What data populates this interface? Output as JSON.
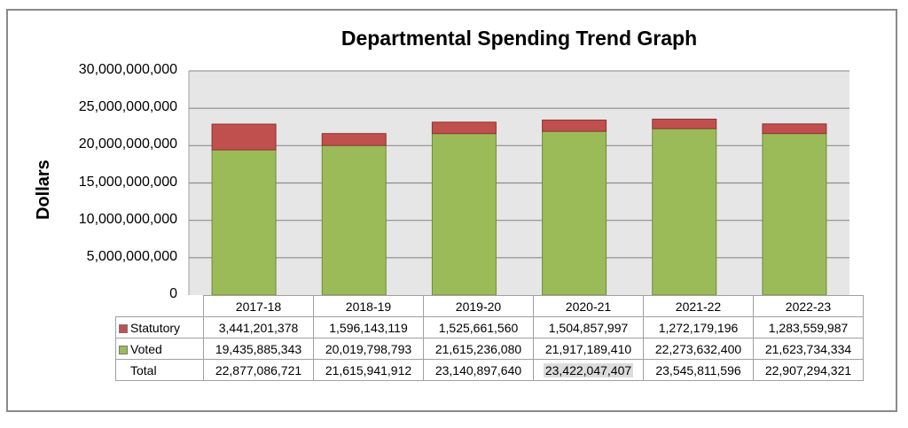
{
  "chart_data": {
    "type": "bar",
    "stacked": true,
    "title": "Departmental Spending Trend Graph",
    "xlabel": "",
    "ylabel": "Dollars",
    "ylim": [
      0,
      30000000000
    ],
    "yticks": [
      0,
      5000000000,
      10000000000,
      15000000000,
      20000000000,
      25000000000,
      30000000000
    ],
    "ytick_labels": [
      "0",
      "5,000,000,000",
      "10,000,000,000",
      "15,000,000,000",
      "20,000,000,000",
      "25,000,000,000",
      "30,000,000,000"
    ],
    "grid": true,
    "legend": "data-table-left",
    "categories": [
      "2017-18",
      "2018-19",
      "2019-20",
      "2020-21",
      "2021-22",
      "2022-23"
    ],
    "series": [
      {
        "name": "Statutory",
        "color": "#c0504d",
        "values": [
          3441201378,
          1596143119,
          1525661560,
          1504857997,
          1272179196,
          1283559987
        ]
      },
      {
        "name": "Voted",
        "color": "#9bbb59",
        "values": [
          19435885343,
          20019798793,
          21615236080,
          21917189410,
          22273632400,
          21623734334
        ]
      }
    ],
    "table": {
      "rows": [
        {
          "label": "Statutory",
          "values": [
            "3,441,201,378",
            "1,596,143,119",
            "1,525,661,560",
            "1,504,857,997",
            "1,272,179,196",
            "1,283,559,987"
          ]
        },
        {
          "label": "Voted",
          "values": [
            "19,435,885,343",
            "20,019,798,793",
            "21,615,236,080",
            "21,917,189,410",
            "22,273,632,400",
            "21,623,734,334"
          ]
        },
        {
          "label": "Total",
          "values": [
            "22,877,086,721",
            "21,615,941,912",
            "23,140,897,640",
            "23,422,047,407",
            "23,545,811,596",
            "22,907,294,321"
          ]
        }
      ],
      "highlighted_cell": "Total 2020-21"
    }
  },
  "colors": {
    "plot_bg": "#e6e6e6",
    "gridline": "#8c8c8c",
    "statutory": "#c0504d",
    "voted": "#9bbb59"
  }
}
